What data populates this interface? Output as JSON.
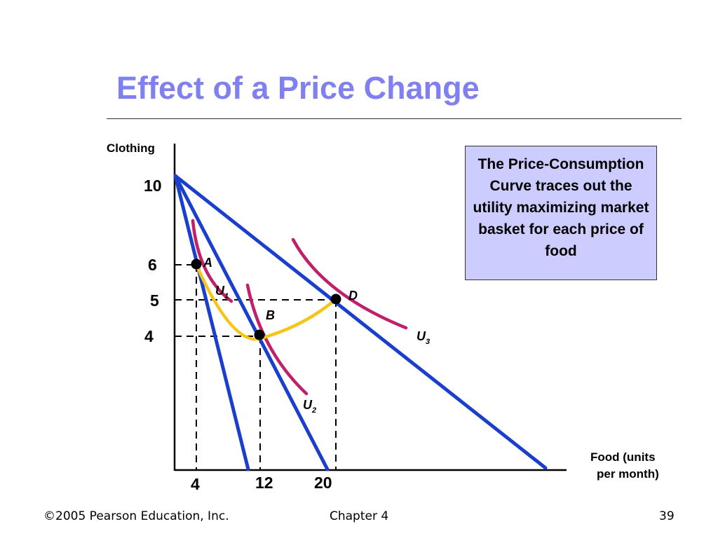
{
  "slide": {
    "title": "Effect of a Price Change",
    "callout": "The Price-Consumption Curve traces out the utility maximizing market basket for each price of food"
  },
  "footer": {
    "copyright": "©2005 Pearson Education, Inc.",
    "chapter": "Chapter 4",
    "page": "39"
  },
  "axes": {
    "y_label": "Clothing",
    "x_label_line1": "Food (units",
    "x_label_line2": "per month)",
    "y_ticks": [
      {
        "value": 10,
        "label": "10"
      },
      {
        "value": 6,
        "label": "6"
      },
      {
        "value": 5,
        "label": "5"
      },
      {
        "value": 4,
        "label": "4"
      }
    ],
    "x_ticks": [
      {
        "value": 4,
        "label": "4"
      },
      {
        "value": 12,
        "label": "12"
      },
      {
        "value": 20,
        "label": "20"
      }
    ]
  },
  "points": [
    {
      "label": "A",
      "food": 4,
      "clothing": 6
    },
    {
      "label": "B",
      "food": 12,
      "clothing": 4
    },
    {
      "label": "D",
      "food": 20,
      "clothing": 5
    }
  ],
  "curves": [
    {
      "label": "U",
      "sub": "1"
    },
    {
      "label": "U",
      "sub": "2"
    },
    {
      "label": "U",
      "sub": "3"
    }
  ],
  "colors": {
    "title": "#8080f0",
    "budget_line": "#1a3fcc",
    "indifference_curve": "#c0206a",
    "price_consumption_curve": "#f5c518",
    "callout_bg": "#ccccff"
  }
}
